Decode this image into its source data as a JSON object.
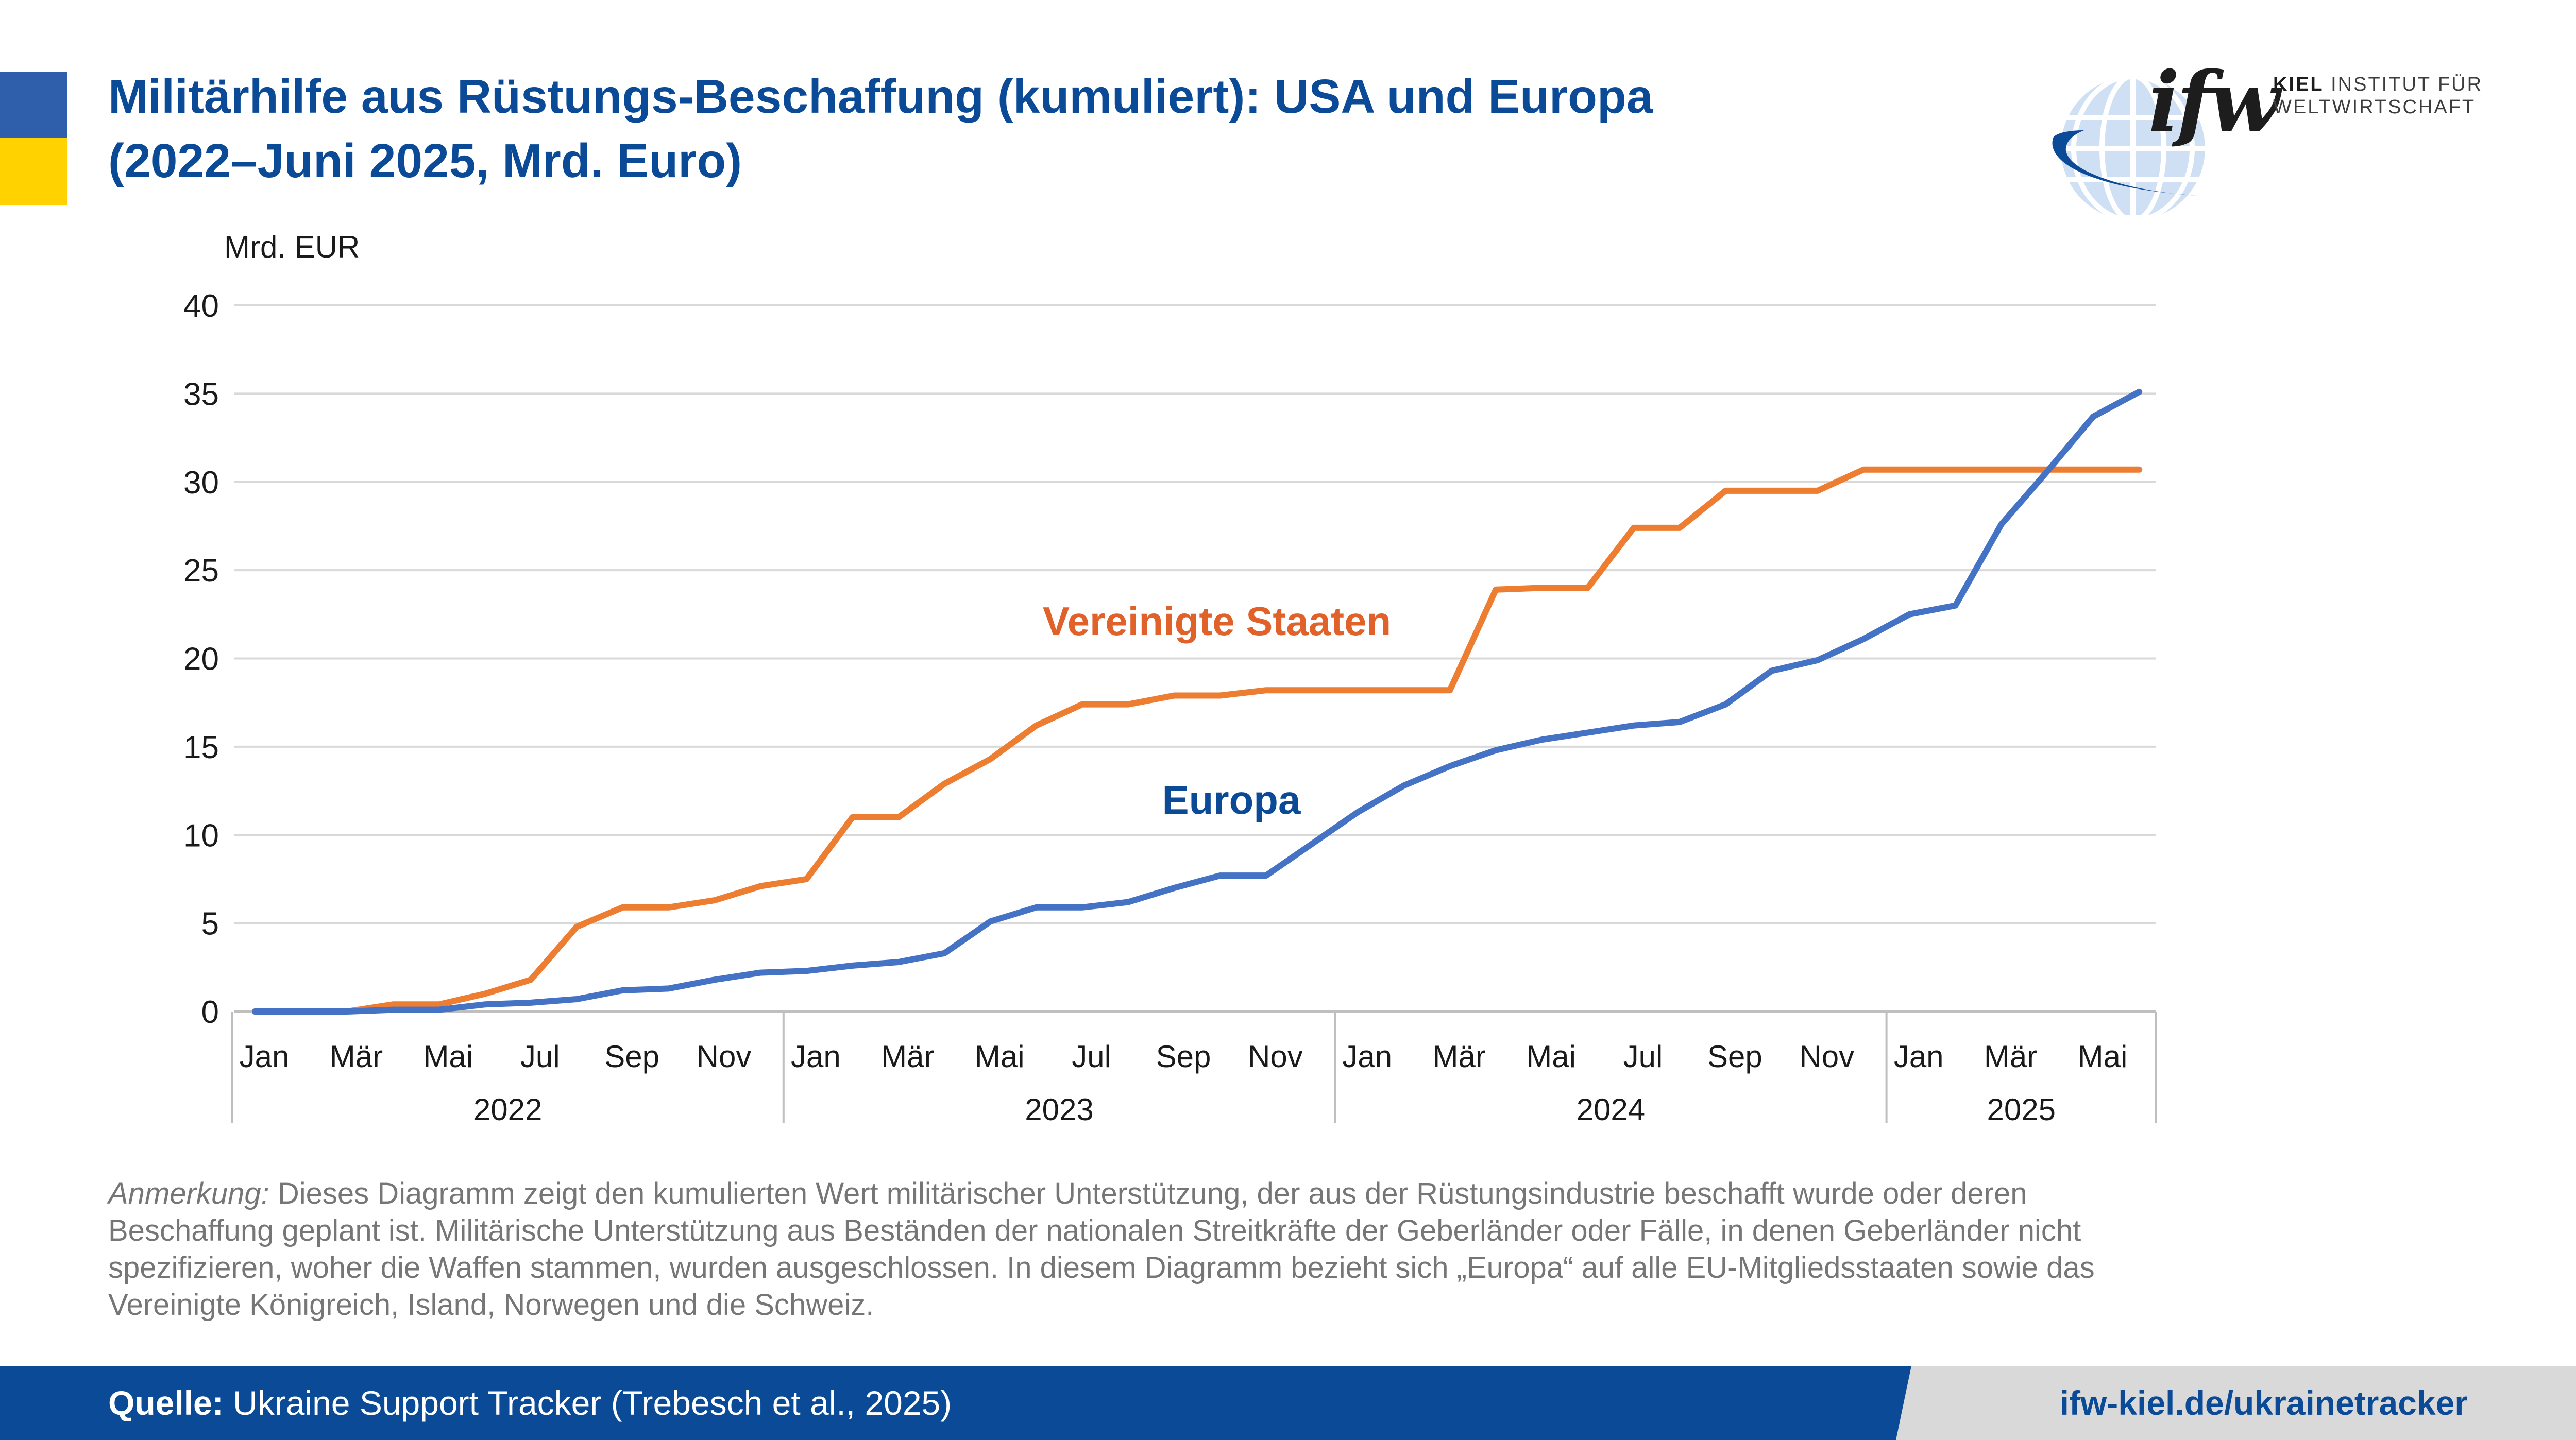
{
  "title": {
    "line1": "Militärhilfe aus Rüstungs-Beschaffung (kumuliert): USA und Europa",
    "line2": "(2022–Juni 2025, Mrd. Euro)"
  },
  "logo": {
    "mark": "ifw",
    "line1_bold": "KIEL",
    "line1_rest": " INSTITUT FÜR",
    "line2": "WELTWIRTSCHAFT"
  },
  "note": {
    "label": "Anmerkung:",
    "text": " Dieses Diagramm zeigt den kumulierten Wert militärischer Unterstützung, der aus der Rüstungsindustrie beschafft wurde oder deren Beschaffung geplant ist. Militärische Unterstützung aus Beständen der nationalen Streitkräfte der Geberländer oder Fälle, in denen Geberländer nicht spezifizieren, woher die Waffen stammen, wurden ausgeschlossen. In diesem Diagramm bezieht sich „Europa“ auf alle EU-Mitgliedsstaaten sowie das Vereinigte Königreich, Island, Norwegen und die Schweiz."
  },
  "footer": {
    "source_label": "Quelle:",
    "source_text": " Ukraine Support Tracker (Trebesch et al., 2025)",
    "url": "ifw-kiel.de/ukrainetracker"
  },
  "colors": {
    "usa": "#ed7d31",
    "europe": "#4472c4",
    "title": "#0a4a97",
    "usa_label": "#e0622a",
    "europe_label": "#0a4a97"
  },
  "chart_data": {
    "type": "line",
    "ylabel": "Mrd. EUR",
    "ylim": [
      0,
      40
    ],
    "yticks": [
      0,
      5,
      10,
      15,
      20,
      25,
      30,
      35,
      40
    ],
    "grid": true,
    "x": [
      "2022-01",
      "2022-02",
      "2022-03",
      "2022-04",
      "2022-05",
      "2022-06",
      "2022-07",
      "2022-08",
      "2022-09",
      "2022-10",
      "2022-11",
      "2022-12",
      "2023-01",
      "2023-02",
      "2023-03",
      "2023-04",
      "2023-05",
      "2023-06",
      "2023-07",
      "2023-08",
      "2023-09",
      "2023-10",
      "2023-11",
      "2023-12",
      "2024-01",
      "2024-02",
      "2024-03",
      "2024-04",
      "2024-05",
      "2024-06",
      "2024-07",
      "2024-08",
      "2024-09",
      "2024-10",
      "2024-11",
      "2024-12",
      "2025-01",
      "2025-02",
      "2025-03",
      "2025-04",
      "2025-05",
      "2025-06"
    ],
    "month_labels": [
      {
        "i": 0,
        "label": "Jan"
      },
      {
        "i": 2,
        "label": "Mär"
      },
      {
        "i": 4,
        "label": "Mai"
      },
      {
        "i": 6,
        "label": "Jul"
      },
      {
        "i": 8,
        "label": "Sep"
      },
      {
        "i": 10,
        "label": "Nov"
      },
      {
        "i": 12,
        "label": "Jan"
      },
      {
        "i": 14,
        "label": "Mär"
      },
      {
        "i": 16,
        "label": "Mai"
      },
      {
        "i": 18,
        "label": "Jul"
      },
      {
        "i": 20,
        "label": "Sep"
      },
      {
        "i": 22,
        "label": "Nov"
      },
      {
        "i": 24,
        "label": "Jan"
      },
      {
        "i": 26,
        "label": "Mär"
      },
      {
        "i": 28,
        "label": "Mai"
      },
      {
        "i": 30,
        "label": "Jul"
      },
      {
        "i": 32,
        "label": "Sep"
      },
      {
        "i": 34,
        "label": "Nov"
      },
      {
        "i": 36,
        "label": "Jan"
      },
      {
        "i": 38,
        "label": "Mär"
      },
      {
        "i": 40,
        "label": "Mai"
      }
    ],
    "years": [
      {
        "label": "2022",
        "start": 0,
        "end": 11
      },
      {
        "label": "2023",
        "start": 12,
        "end": 23
      },
      {
        "label": "2024",
        "start": 24,
        "end": 35
      },
      {
        "label": "2025",
        "start": 36,
        "end": 41
      }
    ],
    "series": [
      {
        "name": "Vereinigte Staaten",
        "values": [
          0,
          0,
          0,
          0.4,
          0.4,
          1.0,
          1.8,
          4.8,
          5.9,
          5.9,
          6.3,
          7.1,
          7.5,
          11.0,
          11.0,
          12.9,
          14.3,
          16.2,
          17.4,
          17.4,
          17.9,
          17.9,
          18.2,
          18.2,
          18.2,
          18.2,
          18.2,
          23.9,
          24.0,
          24.0,
          27.4,
          27.4,
          29.5,
          29.5,
          29.5,
          30.7,
          30.7,
          30.7,
          30.7,
          30.7,
          30.7,
          30.7
        ]
      },
      {
        "name": "Europa",
        "values": [
          0,
          0,
          0,
          0.1,
          0.1,
          0.4,
          0.5,
          0.7,
          1.2,
          1.3,
          1.8,
          2.2,
          2.3,
          2.6,
          2.8,
          3.3,
          5.1,
          5.9,
          5.9,
          6.2,
          7.0,
          7.7,
          7.7,
          9.5,
          11.3,
          12.8,
          13.9,
          14.8,
          15.4,
          15.8,
          16.2,
          16.4,
          17.4,
          19.3,
          19.9,
          21.1,
          22.5,
          23.0,
          27.6,
          30.6,
          33.7,
          35.1
        ]
      }
    ]
  }
}
